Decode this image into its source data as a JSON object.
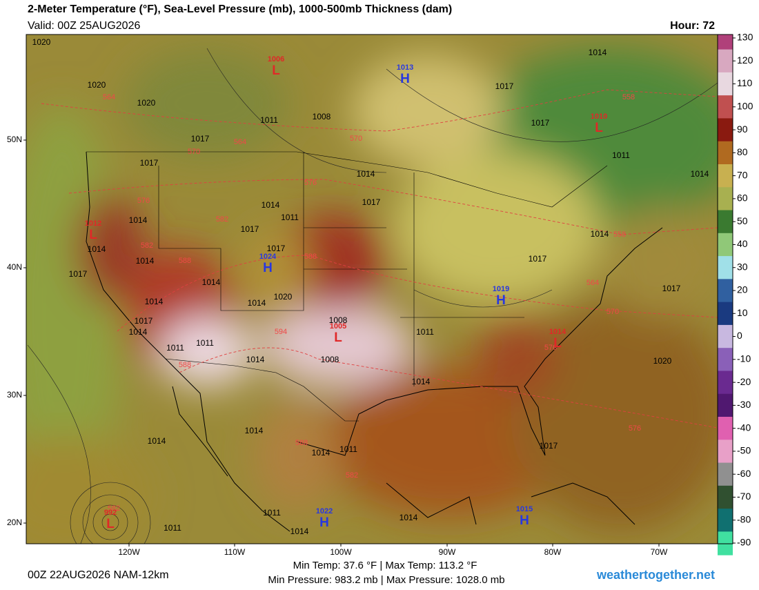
{
  "header": {
    "title": "2-Meter Temperature (°F), Sea-Level Pressure (mb), 1000-500mb Thickness (dam)",
    "valid": "Valid: 00Z 25AUG2026",
    "hour": "Hour: 72"
  },
  "map": {
    "latitudes": [
      "50N",
      "40N",
      "30N",
      "20N"
    ],
    "longitudes": [
      "120W",
      "110W",
      "100W",
      "90W",
      "80W",
      "70W"
    ],
    "centers": [
      {
        "letter": "L",
        "value": "1006"
      },
      {
        "letter": "H",
        "value": "1013"
      },
      {
        "letter": "L",
        "value": "1010"
      },
      {
        "letter": "L",
        "value": "1012"
      },
      {
        "letter": "H",
        "value": "1024"
      },
      {
        "letter": "H",
        "value": "1019"
      },
      {
        "letter": "L",
        "value": "1005"
      },
      {
        "letter": "L",
        "value": "1014"
      },
      {
        "letter": "H",
        "value": "1022"
      },
      {
        "letter": "H",
        "value": "1015"
      },
      {
        "letter": "L",
        "value": "992"
      }
    ],
    "isobars": [
      "1020",
      "1020",
      "1020",
      "1011",
      "1008",
      "1017",
      "1017",
      "1014",
      "1017",
      "1014",
      "1011",
      "1014",
      "1017",
      "1017",
      "1014",
      "1014",
      "1017",
      "1014",
      "1014",
      "1020",
      "1014",
      "1017",
      "1014",
      "1008",
      "1011",
      "1011",
      "1011",
      "1014",
      "1008",
      "1014",
      "1014",
      "1014",
      "1014",
      "1011",
      "1011",
      "1014",
      "1014",
      "1011",
      "1017",
      "1017",
      "1014",
      "1011",
      "1014",
      "1014",
      "1017",
      "1017",
      "1020",
      "1017"
    ],
    "thickness": [
      "564",
      "570",
      "564",
      "570",
      "576",
      "576",
      "582",
      "582",
      "588",
      "588",
      "594",
      "588",
      "588",
      "582",
      "582",
      "558",
      "558",
      "564",
      "570",
      "576",
      "576"
    ]
  },
  "colorbar": {
    "ticks": [
      130,
      120,
      110,
      100,
      90,
      80,
      70,
      60,
      50,
      40,
      30,
      20,
      10,
      0,
      -10,
      -20,
      -30,
      -40,
      -50,
      -60,
      -70,
      -80,
      -90
    ],
    "colors": [
      "#b0407a",
      "#d8a8c0",
      "#e8d8e0",
      "#c05050",
      "#8a1a10",
      "#b06a20",
      "#c8b050",
      "#a8b050",
      "#3a7a30",
      "#90c878",
      "#a0e0e8",
      "#3060a0",
      "#1a3a80",
      "#c8b8e0",
      "#8a60b8",
      "#6a2a90",
      "#501870",
      "#e060b0",
      "#e8a0c8",
      "#909090",
      "#305030",
      "#107070",
      "#40e0a0"
    ]
  },
  "footer": {
    "run": "00Z 22AUG2026 NAM-12km",
    "temps": "Min Temp:  37.6 °F | Max Temp: 113.2 °F",
    "pressure": "Min Pressure: 983.2 mb | Max Pressure: 1028.0 mb",
    "site": "weathertogether.net"
  }
}
